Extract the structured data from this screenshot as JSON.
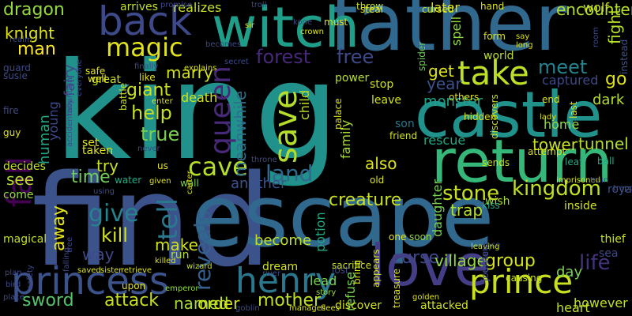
{
  "words": [
    {
      "text": "king",
      "color": "#21918c"
    },
    {
      "text": "find",
      "color": "#3b528b"
    },
    {
      "text": "escape",
      "color": "#31688e"
    },
    {
      "text": "father",
      "color": "#31688e"
    },
    {
      "text": "witch",
      "color": "#1f9e89"
    },
    {
      "text": "castle",
      "color": "#21918c"
    },
    {
      "text": "return",
      "color": "#35b779"
    },
    {
      "text": "love",
      "color": "#433e85"
    },
    {
      "text": "princess",
      "color": "#3b528b"
    },
    {
      "text": "henry",
      "color": "#2a788e"
    },
    {
      "text": "back",
      "color": "#3e4989"
    },
    {
      "text": "queen",
      "color": "#482878"
    },
    {
      "text": "save",
      "color": "#b5de2b"
    },
    {
      "text": "take",
      "color": "#bddf26"
    },
    {
      "text": "fall",
      "color": "#440154"
    },
    {
      "text": "prince",
      "color": "#c8e020"
    },
    {
      "text": "magic",
      "color": "#e0e31a"
    },
    {
      "text": "cave",
      "color": "#b5de2b"
    },
    {
      "text": "tell",
      "color": "#2a788e"
    },
    {
      "text": "give",
      "color": "#26828e"
    },
    {
      "text": "kingdom",
      "color": "#c2df23"
    },
    {
      "text": "stone",
      "color": "#c8e020"
    },
    {
      "text": "help",
      "color": "#c2df23"
    },
    {
      "text": "meet",
      "color": "#26828e"
    },
    {
      "text": "land",
      "color": "#31688e"
    },
    {
      "text": "reveals",
      "color": "#355f8d"
    },
    {
      "text": "forest",
      "color": "#482878"
    },
    {
      "text": "free",
      "color": "#3e4989"
    },
    {
      "text": "true",
      "color": "#7ad151"
    },
    {
      "text": "dragon",
      "color": "#95d840"
    },
    {
      "text": "man",
      "color": "#fde725"
    },
    {
      "text": "knight",
      "color": "#dde318"
    },
    {
      "text": "giant",
      "color": "#c8e020"
    },
    {
      "text": "kill",
      "color": "#d2e21b"
    },
    {
      "text": "away",
      "color": "#e5e419"
    },
    {
      "text": "human",
      "color": "#22a884"
    },
    {
      "text": "meanwhile",
      "color": "#2e6e8e"
    },
    {
      "text": "creature",
      "color": "#c8e020"
    },
    {
      "text": "life",
      "color": "#46337e"
    },
    {
      "text": "go",
      "color": "#dde318"
    },
    {
      "text": "sword",
      "color": "#54c568"
    },
    {
      "text": "attack",
      "color": "#c8e020"
    },
    {
      "text": "named",
      "color": "#a8db34"
    },
    {
      "text": "order",
      "color": "#d2e21b"
    },
    {
      "text": "mother",
      "color": "#c2df23"
    },
    {
      "text": "group",
      "color": "#d2e21b"
    },
    {
      "text": "time",
      "color": "#6ece58"
    },
    {
      "text": "see",
      "color": "#b5de2b"
    },
    {
      "text": "way",
      "color": "#3e4989"
    },
    {
      "text": "try",
      "color": "#c8e020"
    },
    {
      "text": "also",
      "color": "#dde318"
    },
    {
      "text": "year",
      "color": "#3b528b"
    },
    {
      "text": "get",
      "color": "#dde318"
    },
    {
      "text": "become",
      "color": "#c2df23"
    },
    {
      "text": "marry",
      "color": "#d2e21b"
    },
    {
      "text": "fight",
      "color": "#b5de2b"
    },
    {
      "text": "tower",
      "color": "#c8e020"
    },
    {
      "text": "tunnel",
      "color": "#b5de2b"
    },
    {
      "text": "curse",
      "color": "#3e4989"
    },
    {
      "text": "village",
      "color": "#95d840"
    },
    {
      "text": "child",
      "color": "#bddf26"
    },
    {
      "text": "family",
      "color": "#a8db34"
    },
    {
      "text": "captured",
      "color": "#3e4989"
    },
    {
      "text": "monster",
      "color": "#1fa187"
    },
    {
      "text": "potion",
      "color": "#22a884"
    },
    {
      "text": "trap",
      "color": "#b5de2b"
    },
    {
      "text": "encounter",
      "color": "#b5de2b"
    },
    {
      "text": "spell",
      "color": "#95d840"
    },
    {
      "text": "daughter",
      "color": "#7ad151"
    },
    {
      "text": "fairy",
      "color": "#3e4989"
    },
    {
      "text": "young",
      "color": "#3e4989"
    },
    {
      "text": "make",
      "color": "#d2e21b"
    },
    {
      "text": "heart",
      "color": "#c2df23"
    },
    {
      "text": "however",
      "color": "#c2df23"
    },
    {
      "text": "day",
      "color": "#7ad151"
    },
    {
      "text": "dark",
      "color": "#b5de2b"
    },
    {
      "text": "home",
      "color": "#95d840"
    },
    {
      "text": "refuse",
      "color": "#7ad151"
    },
    {
      "text": "rescue",
      "color": "#22a884"
    },
    {
      "text": "lead",
      "color": "#7ad151"
    },
    {
      "text": "another",
      "color": "#3b528b"
    },
    {
      "text": "death",
      "color": "#d2e21b"
    },
    {
      "text": "later",
      "color": "#e5e419"
    },
    {
      "text": "wolf",
      "color": "#c8e020"
    },
    {
      "text": "realizes",
      "color": "#c8e020"
    },
    {
      "text": "arrives",
      "color": "#c2df23"
    },
    {
      "text": "magical",
      "color": "#c2df23"
    },
    {
      "text": "power",
      "color": "#b5de2b"
    },
    {
      "text": "leave",
      "color": "#d2e21b"
    },
    {
      "text": "stop",
      "color": "#d2e21b"
    },
    {
      "text": "attacked",
      "color": "#d2e21b"
    },
    {
      "text": "discover",
      "color": "#d2e21b"
    },
    {
      "text": "son",
      "color": "#2a788e"
    },
    {
      "text": "world",
      "color": "#bddf26"
    },
    {
      "text": "great",
      "color": "#c8e020"
    },
    {
      "text": "wish",
      "color": "#a8db34"
    },
    {
      "text": "kiss",
      "color": "#22a884"
    },
    {
      "text": "set",
      "color": "#dde318"
    },
    {
      "text": "taken",
      "color": "#dde318"
    },
    {
      "text": "decides",
      "color": "#c2df23"
    },
    {
      "text": "come",
      "color": "#95d840"
    },
    {
      "text": "water",
      "color": "#22a884"
    },
    {
      "text": "wall",
      "color": "#7ad151"
    },
    {
      "text": "run",
      "color": "#b5de2b"
    },
    {
      "text": "dream",
      "color": "#d2e21b"
    },
    {
      "text": "thief",
      "color": "#c8e020"
    },
    {
      "text": "sea",
      "color": "#3e4989"
    },
    {
      "text": "inside",
      "color": "#d2e21b"
    },
    {
      "text": "leaf",
      "color": "#22a884"
    },
    {
      "text": "ball",
      "color": "#22a884"
    },
    {
      "text": "royal",
      "color": "#3b528b"
    },
    {
      "text": "friend",
      "color": "#d2e21b"
    },
    {
      "text": "one",
      "color": "#e5e419"
    },
    {
      "text": "soon",
      "color": "#95d840"
    },
    {
      "text": "story",
      "color": "#95d840"
    },
    {
      "text": "emperor",
      "color": "#95d840"
    },
    {
      "text": "wizard",
      "color": "#c8e020"
    },
    {
      "text": "hand",
      "color": "#dde318"
    },
    {
      "text": "form",
      "color": "#dde318"
    },
    {
      "text": "end",
      "color": "#dde318"
    },
    {
      "text": "must",
      "color": "#dde318"
    },
    {
      "text": "throw",
      "color": "#c8e020"
    },
    {
      "text": "cursed",
      "color": "#c8e020"
    },
    {
      "text": "spider",
      "color": "#6ece58"
    },
    {
      "text": "instead",
      "color": "#3b528b"
    },
    {
      "text": "attempt",
      "color": "#dde318"
    },
    {
      "text": "sends",
      "color": "#c8e020"
    },
    {
      "text": "others",
      "color": "#dde318"
    },
    {
      "text": "hidden",
      "color": "#dde318"
    },
    {
      "text": "discovers",
      "color": "#c8e020"
    },
    {
      "text": "palace",
      "color": "#dde318"
    },
    {
      "text": "old",
      "color": "#dde318"
    },
    {
      "text": "us",
      "color": "#e5e419"
    },
    {
      "text": "like",
      "color": "#e5e419"
    },
    {
      "text": "safe",
      "color": "#e5e419"
    },
    {
      "text": "well",
      "color": "#e5e419"
    },
    {
      "text": "battle",
      "color": "#c8e020"
    },
    {
      "text": "steal",
      "color": "#e5e419"
    },
    {
      "text": "fire",
      "color": "#3e4989"
    },
    {
      "text": "susie",
      "color": "#3e4989"
    },
    {
      "text": "guard",
      "color": "#3e4989"
    },
    {
      "text": "mountain",
      "color": "#3e4989"
    },
    {
      "text": "guy",
      "color": "#dde318"
    },
    {
      "text": "bird",
      "color": "#3e4989"
    },
    {
      "text": "plan",
      "color": "#3e4989"
    },
    {
      "text": "place",
      "color": "#3e4989"
    },
    {
      "text": "safety",
      "color": "#3e4989"
    },
    {
      "text": "upon",
      "color": "#e5e419"
    },
    {
      "text": "killed",
      "color": "#dde318"
    },
    {
      "text": "falling",
      "color": "#3e4989"
    },
    {
      "text": "tree",
      "color": "#3e4989"
    },
    {
      "text": "saved",
      "color": "#dde318"
    },
    {
      "text": "sister",
      "color": "#dde318"
    },
    {
      "text": "retrieve",
      "color": "#dde318"
    },
    {
      "text": "river",
      "color": "#3e4989"
    },
    {
      "text": "goblin",
      "color": "#3e4989"
    },
    {
      "text": "flees",
      "color": "#dde318"
    },
    {
      "text": "manages",
      "color": "#dde318"
    },
    {
      "text": "lost",
      "color": "#3e4989"
    },
    {
      "text": "appears",
      "color": "#dde318"
    },
    {
      "text": "treasure",
      "color": "#dde318"
    },
    {
      "text": "golden",
      "color": "#dde318"
    },
    {
      "text": "causing",
      "color": "#c8e020"
    },
    {
      "text": "journey",
      "color": "#3e4989"
    },
    {
      "text": "face",
      "color": "#3e4989"
    },
    {
      "text": "leaving",
      "color": "#c8e020"
    },
    {
      "text": "sacrifice",
      "color": "#c8e020"
    },
    {
      "text": "bring",
      "color": "#dde318"
    },
    {
      "text": "using",
      "color": "#3e4989"
    },
    {
      "text": "carter",
      "color": "#dde318"
    },
    {
      "text": "given",
      "color": "#dde318"
    },
    {
      "text": "imprisoned",
      "color": "#dde318"
    },
    {
      "text": "train",
      "color": "#3e4989"
    },
    {
      "text": "trapped",
      "color": "#3e4989"
    },
    {
      "text": "last",
      "color": "#dde318"
    },
    {
      "text": "lady",
      "color": "#dde318"
    },
    {
      "text": "capture",
      "color": "#3e4989"
    },
    {
      "text": "promise",
      "color": "#3e4989"
    },
    {
      "text": "troll",
      "color": "#3e4989"
    },
    {
      "text": "sir",
      "color": "#dde318"
    },
    {
      "text": "secret",
      "color": "#3e4989"
    },
    {
      "text": "crown",
      "color": "#dde318"
    },
    {
      "text": "kone",
      "color": "#3e4989"
    },
    {
      "text": "becomes",
      "color": "#3e4989"
    },
    {
      "text": "explains",
      "color": "#dde318"
    },
    {
      "text": "finally",
      "color": "#3e4989"
    },
    {
      "text": "enter",
      "color": "#dde318"
    },
    {
      "text": "never",
      "color": "#3e4989"
    },
    {
      "text": "throne",
      "color": "#3e4989"
    },
    {
      "text": "say",
      "color": "#dde318"
    },
    {
      "text": "long",
      "color": "#dde318"
    },
    {
      "text": "room",
      "color": "#3e4989"
    },
    {
      "text": "realm",
      "color": "#3e4989"
    },
    {
      "text": "everyone",
      "color": "#3e4989"
    },
    {
      "text": "accidentally",
      "color": "#3e4989"
    }
  ]
}
